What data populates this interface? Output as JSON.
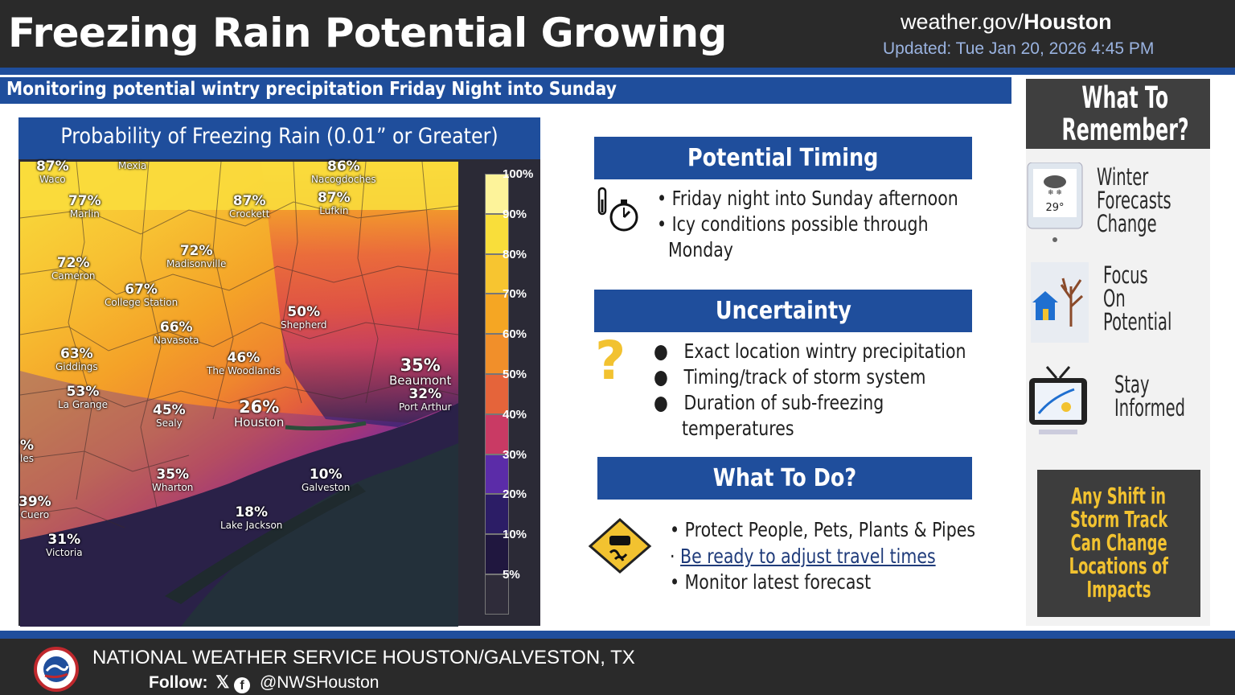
{
  "header": {
    "title": "Freezing Rain Potential Growing",
    "site_prefix": "weather.gov/",
    "site_office": "Houston",
    "updated": "Updated: Tue Jan 20, 2026 4:45 PM"
  },
  "subtitle": "Monitoring potential wintry precipitation Friday Night into Sunday",
  "map": {
    "title": "Probability of Freezing Rain (0.01” or Greater)",
    "legend": [
      "100%",
      "90%",
      "80%",
      "70%",
      "60%",
      "50%",
      "40%",
      "30%",
      "20%",
      "10%",
      "5%"
    ],
    "legend_colors": [
      "#fdf39a",
      "#f9de3a",
      "#f7c530",
      "#f5a623",
      "#f18f2a",
      "#e5643a",
      "#c93a64",
      "#5b2ca8",
      "#2c1d66",
      "#20173f",
      "#2f2c3a"
    ],
    "cities": [
      {
        "value": "87%",
        "name": "Waco"
      },
      {
        "value": "",
        "name": "Mexia"
      },
      {
        "value": "86%",
        "name": "Nacogdoches"
      },
      {
        "value": "77%",
        "name": "Marlin"
      },
      {
        "value": "87%",
        "name": "Crockett"
      },
      {
        "value": "87%",
        "name": "Lufkin"
      },
      {
        "value": "72%",
        "name": "Madisonville"
      },
      {
        "value": "72%",
        "name": "Cameron"
      },
      {
        "value": "67%",
        "name": "College Station"
      },
      {
        "value": "66%",
        "name": "Navasota"
      },
      {
        "value": "50%",
        "name": "Shepherd"
      },
      {
        "value": "63%",
        "name": "Giddings"
      },
      {
        "value": "46%",
        "name": "The Woodlands"
      },
      {
        "value": "35%",
        "name": "Beaumont"
      },
      {
        "value": "32%",
        "name": "Port Arthur"
      },
      {
        "value": "53%",
        "name": "La Grange"
      },
      {
        "value": "45%",
        "name": "Sealy"
      },
      {
        "value": "26%",
        "name": "Houston"
      },
      {
        "value": "10%",
        "name": "Galveston"
      },
      {
        "value": "35%",
        "name": "Wharton"
      },
      {
        "value": "18%",
        "name": "Lake Jackson"
      },
      {
        "value": "39%",
        "name": "Cuero"
      },
      {
        "value": "31%",
        "name": "Victoria"
      },
      {
        "value": "%",
        "name": "les"
      }
    ]
  },
  "timing": {
    "heading": "Potential Timing",
    "items": [
      "Friday night into Sunday afternoon",
      "Icy conditions possible through",
      "Monday"
    ]
  },
  "uncertainty": {
    "heading": "Uncertainty",
    "items": [
      "Exact location wintry precipitation",
      "Timing/track of storm system",
      "Duration of sub-freezing",
      "temperatures"
    ]
  },
  "todo": {
    "heading": "What To Do?",
    "items": [
      "Protect People, Pets, Plants & Pipes",
      "Be ready to adjust travel times",
      "Monitor latest forecast"
    ]
  },
  "side": {
    "heading_line1": "What To",
    "heading_line2": "Remember?",
    "tablet_temp": "29°",
    "item1": [
      "Winter",
      "Forecasts",
      "Change"
    ],
    "item2": [
      "Focus",
      "On",
      "Potential"
    ],
    "item3": [
      "Stay",
      "Informed"
    ],
    "shift": [
      "Any Shift in",
      "Storm Track",
      "Can Change",
      "Locations of",
      "Impacts"
    ]
  },
  "footer": {
    "org": "NATIONAL WEATHER SERVICE HOUSTON/GALVESTON, TX",
    "follow_label": "Follow:",
    "handle": "@NWSHouston"
  }
}
